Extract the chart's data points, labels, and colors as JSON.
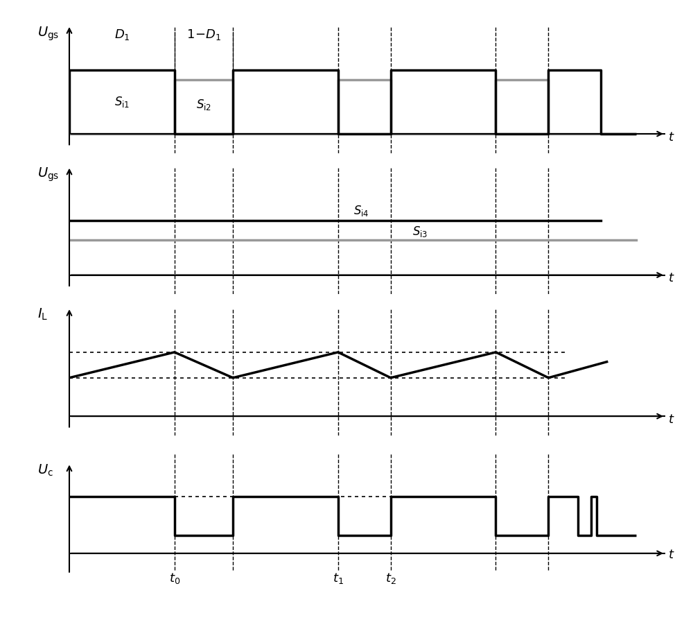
{
  "fig_width": 10.0,
  "fig_height": 8.94,
  "dpi": 100,
  "bg_color": "#ffffff",
  "vlines": [
    0.18,
    0.28,
    0.46,
    0.55,
    0.73,
    0.82
  ],
  "labels": {
    "Ugs_top": "$U_{\\mathrm{gs}}$",
    "Ugs_bot": "$U_{\\mathrm{gs}}$",
    "IL": "$I_{\\mathrm{L}}$",
    "Uc": "$U_{\\mathrm{c}}$",
    "t": "$t$",
    "D1": "$D_1$",
    "1mD1": "$1\\!-\\!D_1$",
    "Si1": "$S_{\\mathrm{i1}}$",
    "Si2": "$S_{\\mathrm{i2}}$",
    "Si3": "$S_{\\mathrm{i3}}$",
    "Si4": "$S_{\\mathrm{i4}}$",
    "t0": "$t_0$",
    "t1": "$t_1$",
    "t2": "$t_2$"
  },
  "BLACK": "#000000",
  "GRAY": "#999999",
  "XMIN": 0.0,
  "XMAX": 1.02
}
